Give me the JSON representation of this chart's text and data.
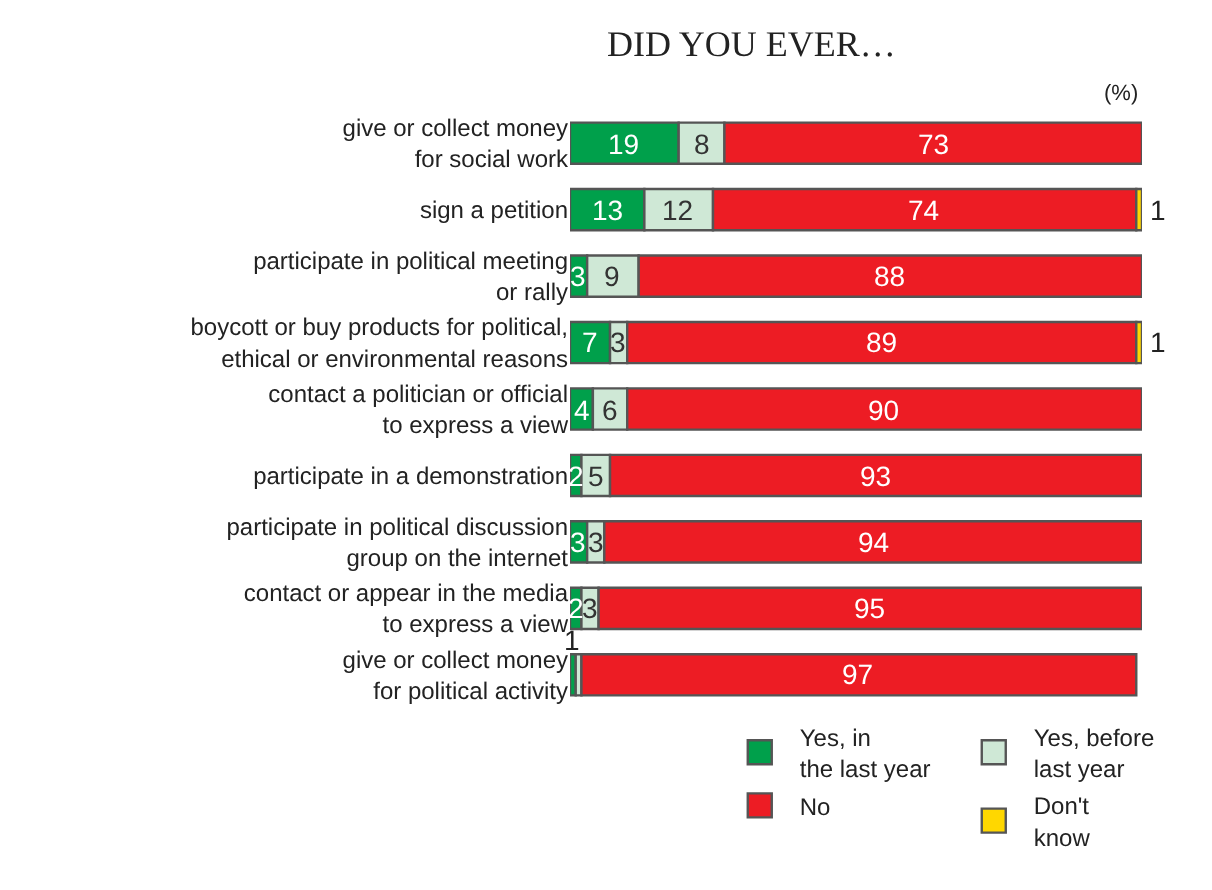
{
  "chart_data": {
    "type": "bar",
    "orientation": "horizontal",
    "stacked": true,
    "title": "DID YOU EVER…",
    "categories": [
      "give or collect money\nfor social work",
      "sign a petition",
      "participate in political meeting\nor rally",
      "boycott or buy products for political,\nethical or environmental reasons",
      "contact a politician or official\nto express a view",
      "participate in a demonstration",
      "participate in political discussion\ngroup on the internet",
      "contact or appear in the media\nto express a view",
      "give or collect money\nfor political activity"
    ],
    "series": [
      {
        "name": "Yes, in\nthe last year",
        "color": "#00a04b",
        "values": [
          19,
          13,
          3,
          7,
          4,
          2,
          3,
          2,
          1
        ],
        "value_labels": [
          "19",
          "13",
          "3",
          "7",
          "4",
          "2",
          "3",
          "2",
          "1"
        ]
      },
      {
        "name": "Yes, before\nlast year",
        "color": "#cfe8d6",
        "values": [
          8,
          12,
          9,
          3,
          6,
          5,
          3,
          3,
          1
        ],
        "value_labels": [
          "8",
          "12",
          "9",
          "3",
          "6",
          "5",
          "3",
          "3",
          null
        ]
      },
      {
        "name": "No",
        "color": "#ed1c24",
        "values": [
          73,
          74,
          88,
          89,
          90,
          93,
          94,
          95,
          97
        ],
        "value_labels": [
          "73",
          "74",
          "88",
          "89",
          "90",
          "93",
          "94",
          "95",
          "97"
        ]
      },
      {
        "name": "Don't\nknow",
        "color": "#ffd700",
        "values": [
          null,
          1,
          null,
          1,
          null,
          null,
          null,
          null,
          null
        ],
        "value_labels": [
          null,
          "1",
          null,
          "1",
          null,
          null,
          null,
          null,
          null
        ]
      }
    ],
    "xlim": [
      0,
      100
    ],
    "tick_labels": false,
    "legend": "bottom",
    "annotations": [
      "(%)"
    ]
  }
}
